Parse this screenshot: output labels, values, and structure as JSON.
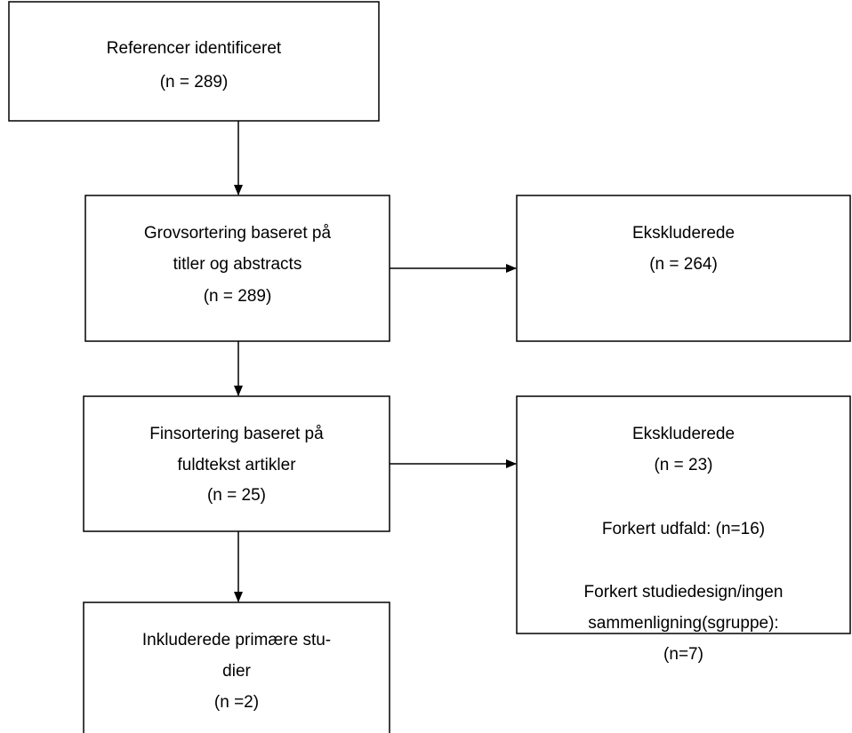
{
  "nodes": [
    {
      "lines": [
        "Referencer identificeret",
        "(n = 289)"
      ]
    },
    {
      "lines": [
        "Grovsortering baseret på",
        "titler og abstracts",
        "(n = 289)"
      ]
    },
    {
      "lines": [
        "Ekskluderede",
        "(n = 264)"
      ]
    },
    {
      "lines": [
        "Finsortering baseret på",
        "fuldtekst artikler",
        "(n = 25)"
      ]
    },
    {
      "lines": [
        "Ekskluderede",
        "(n = 23)",
        "Forkert udfald: (n=16)",
        "Forkert studiedesign/ingen",
        "sammenligning(sgruppe):",
        "(n=7)"
      ]
    },
    {
      "lines": [
        "Inkluderede primære stu-",
        "dier",
        "(n =2)"
      ]
    }
  ]
}
